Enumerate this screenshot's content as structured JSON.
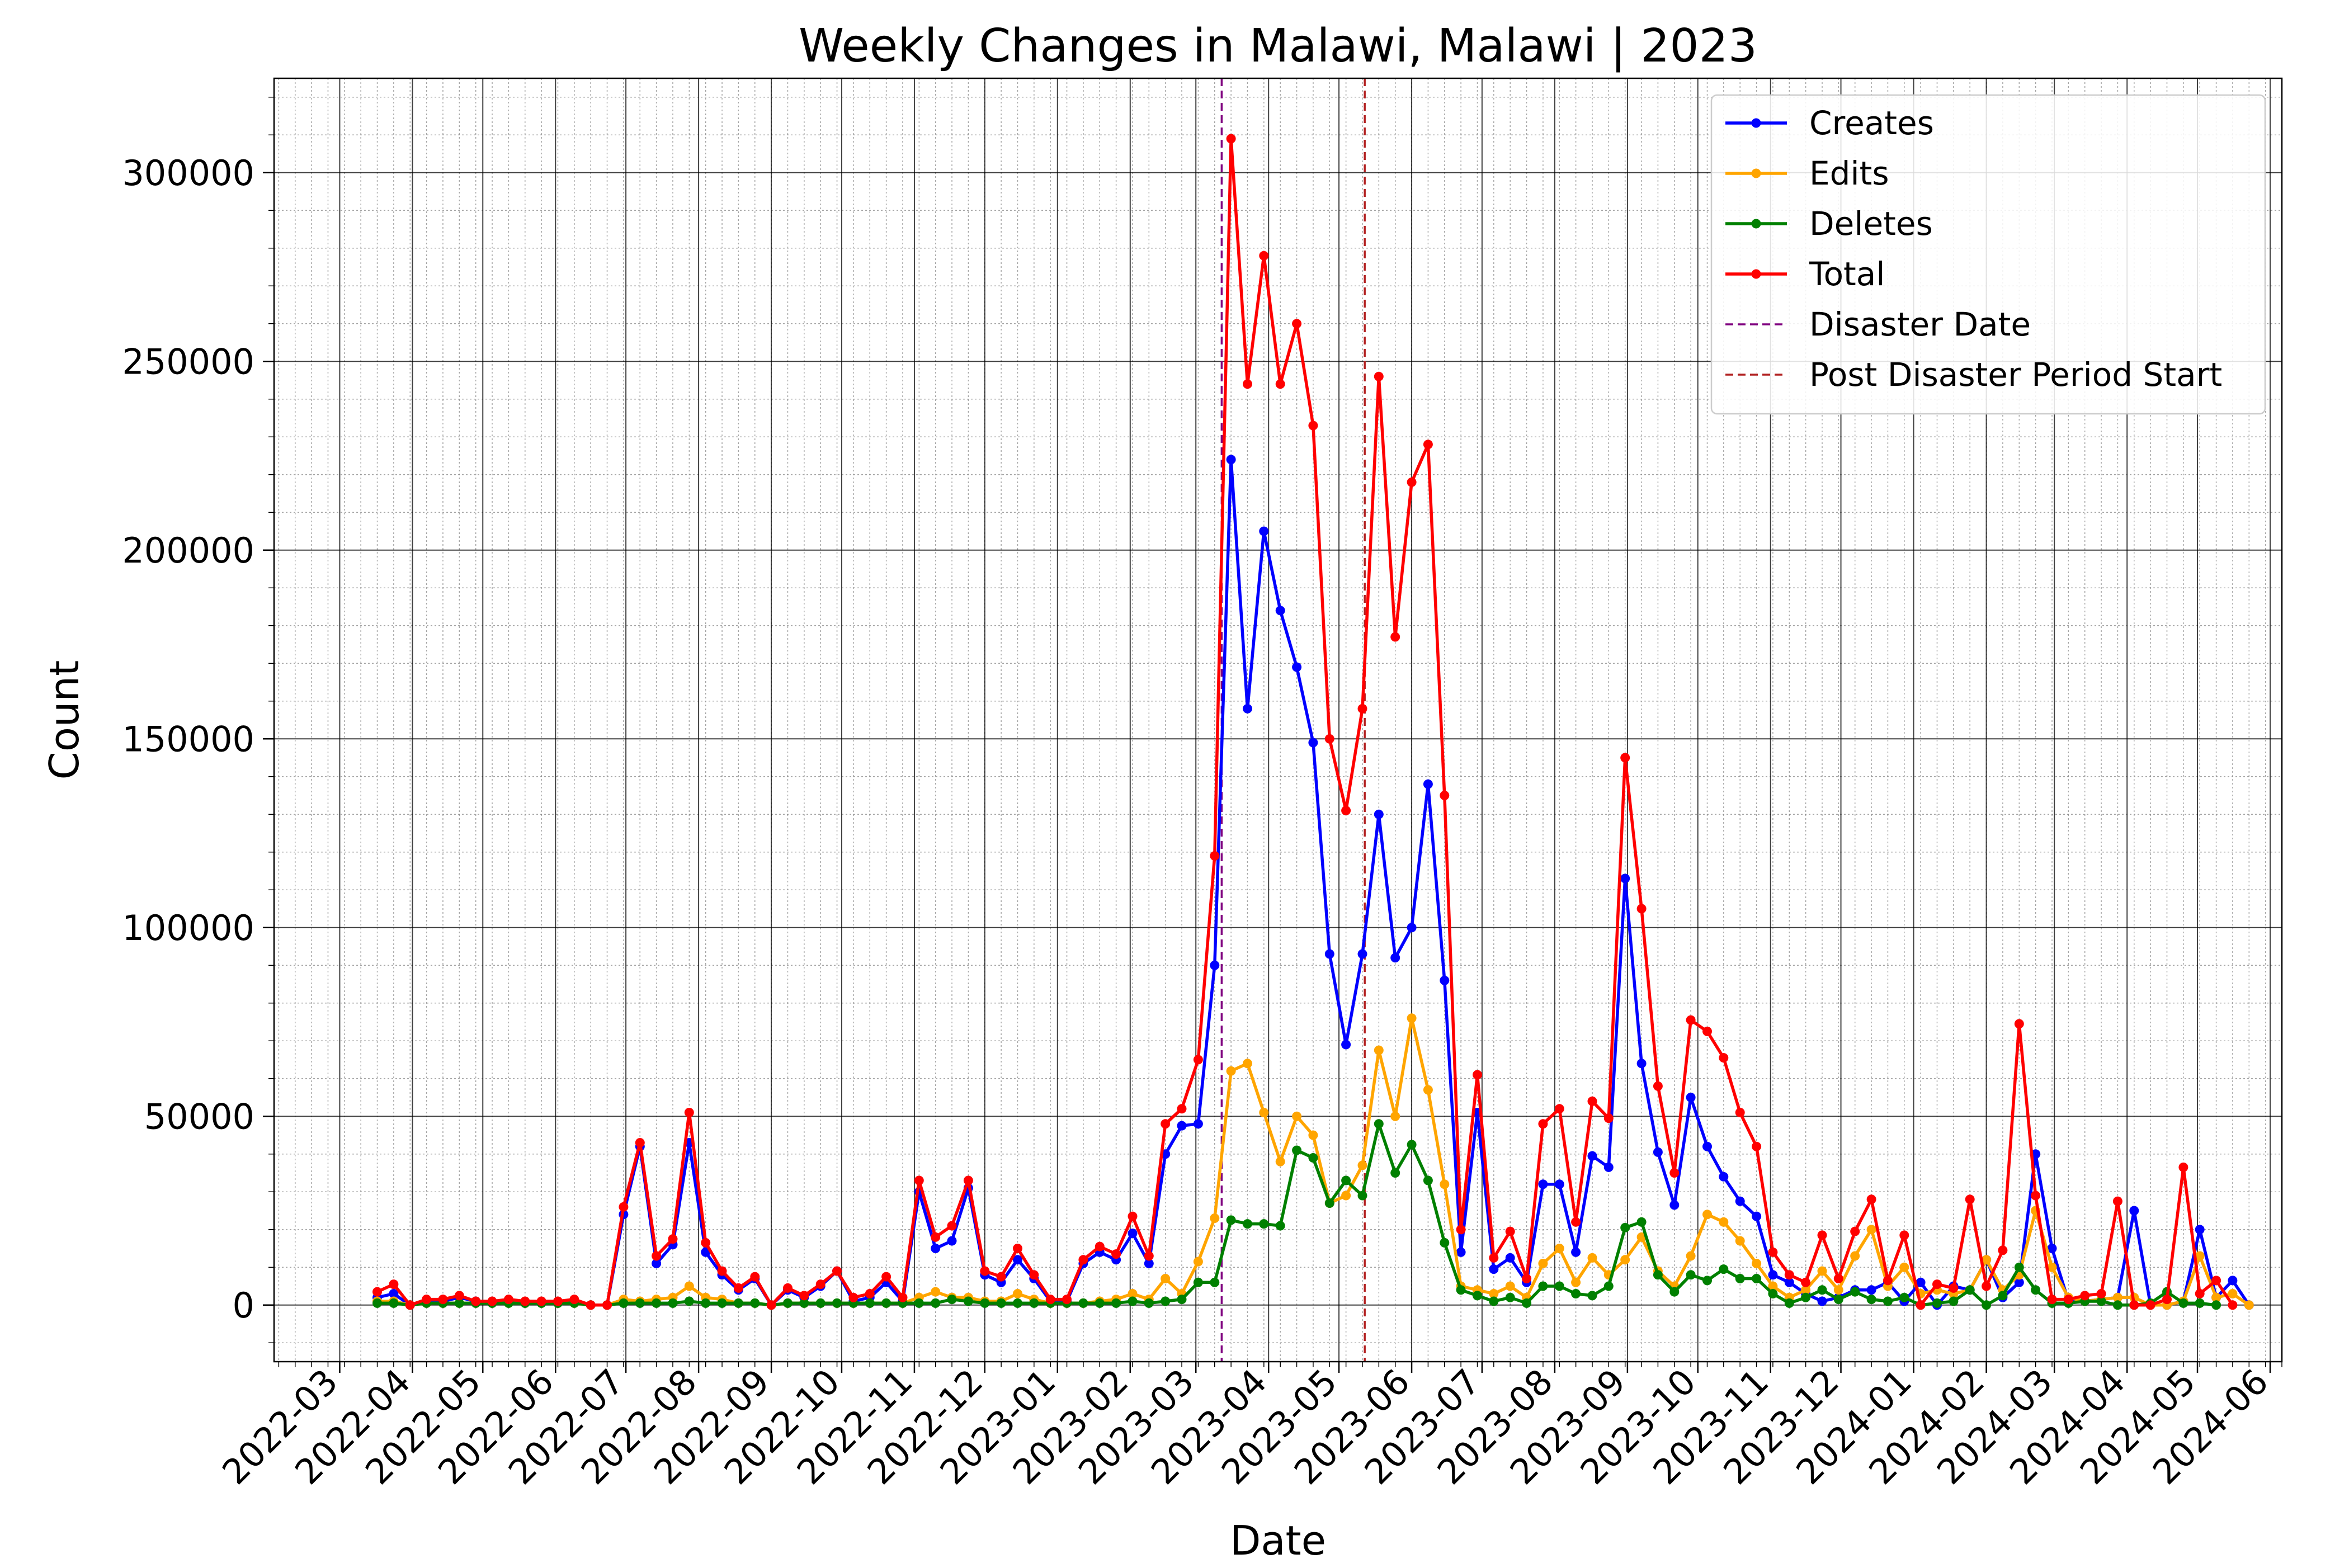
{
  "chart_data": {
    "type": "line",
    "title": "Weekly Changes in Malawi, Malawi | 2023",
    "xlabel": "Date",
    "ylabel": "Count",
    "xlim": [
      "2022-02-01",
      "2024-06-06"
    ],
    "ylim": [
      -15000,
      325000
    ],
    "x_tick_labels": [
      "2022-03",
      "2022-04",
      "2022-05",
      "2022-06",
      "2022-07",
      "2022-08",
      "2022-09",
      "2022-10",
      "2022-11",
      "2022-12",
      "2023-01",
      "2023-02",
      "2023-03",
      "2023-04",
      "2023-05",
      "2023-06",
      "2023-07",
      "2023-08",
      "2023-09",
      "2023-10",
      "2023-11",
      "2023-12",
      "2024-01",
      "2024-02",
      "2024-03",
      "2024-04",
      "2024-05",
      "2024-06"
    ],
    "y_ticks": [
      0,
      50000,
      100000,
      150000,
      200000,
      250000,
      300000
    ],
    "y_tick_labels": [
      "0",
      "50000",
      "100000",
      "150000",
      "200000",
      "250000",
      "300000"
    ],
    "grid": true,
    "legend": "top-right",
    "x_start": "2022-03-17",
    "x_step_days": 7,
    "series": [
      {
        "name": "Creates",
        "color": "#0000ff",
        "values": [
          2000,
          3000,
          0,
          1000,
          1000,
          2000,
          1000,
          500,
          1000,
          500,
          500,
          500,
          1000,
          0,
          0,
          24000,
          42000,
          11000,
          16000,
          43000,
          14000,
          8000,
          4000,
          7000,
          0,
          4000,
          2000,
          5000,
          9000,
          1000,
          2000,
          6000,
          1000,
          30000,
          15000,
          17000,
          31000,
          8000,
          6000,
          12000,
          7000,
          1000,
          1000,
          11000,
          14000,
          12000,
          19000,
          11000,
          40000,
          47500,
          48000,
          90000,
          224000,
          158000,
          205000,
          184000,
          169000,
          149000,
          93000,
          69000,
          93000,
          130000,
          92000,
          100000,
          138000,
          86000,
          14000,
          51000,
          9500,
          12500,
          6000,
          32000,
          32000,
          14000,
          39500,
          36500,
          113000,
          64000,
          40500,
          26500,
          55000,
          42000,
          34000,
          27500,
          23500,
          8000,
          6000,
          3000,
          1000,
          2000,
          4000,
          4000,
          6000,
          1000,
          6000,
          0,
          5000,
          4000,
          12000,
          2000,
          6000,
          40000,
          15000,
          1000,
          1000,
          1500,
          2000,
          25000,
          0,
          0,
          1000,
          20000,
          2000,
          6500,
          0
        ],
        "legend_marker": "line-dot"
      },
      {
        "name": "Edits",
        "color": "#ffa500",
        "values": [
          1000,
          1000,
          0,
          500,
          500,
          500,
          500,
          500,
          500,
          500,
          500,
          500,
          500,
          0,
          0,
          1500,
          1000,
          1500,
          2000,
          5000,
          2000,
          1500,
          500,
          500,
          0,
          500,
          500,
          500,
          500,
          500,
          500,
          500,
          500,
          2000,
          3500,
          2000,
          2000,
          1000,
          1000,
          3000,
          1500,
          500,
          500,
          500,
          1000,
          1500,
          3000,
          1500,
          7000,
          3000,
          11500,
          23000,
          62000,
          64000,
          51000,
          38000,
          50000,
          45000,
          27000,
          29000,
          37000,
          67500,
          50000,
          76000,
          57000,
          32000,
          5000,
          4000,
          3000,
          5000,
          2000,
          11000,
          15000,
          6000,
          12500,
          8000,
          12000,
          18000,
          9000,
          5000,
          13000,
          24000,
          22000,
          17000,
          11000,
          5000,
          2000,
          4000,
          9000,
          4000,
          13000,
          20000,
          5000,
          10000,
          3000,
          4000,
          3000,
          4000,
          12000,
          4000,
          8000,
          25000,
          10000,
          2000,
          1000,
          1500,
          2000,
          2000,
          0,
          0,
          1000,
          13000,
          2000,
          3000,
          0
        ],
        "legend_marker": "line-dot"
      },
      {
        "name": "Deletes",
        "color": "#008000",
        "values": [
          500,
          500,
          0,
          500,
          500,
          500,
          500,
          500,
          500,
          500,
          500,
          500,
          500,
          0,
          0,
          500,
          500,
          500,
          500,
          1000,
          500,
          500,
          500,
          500,
          0,
          500,
          500,
          500,
          500,
          500,
          500,
          500,
          500,
          500,
          500,
          1500,
          1000,
          500,
          500,
          500,
          500,
          500,
          500,
          500,
          500,
          500,
          1000,
          500,
          1000,
          1500,
          6000,
          6000,
          22500,
          21500,
          21500,
          21000,
          41000,
          39000,
          27000,
          33000,
          29000,
          48000,
          35000,
          42500,
          33000,
          16500,
          4000,
          2500,
          1000,
          2000,
          500,
          5000,
          5000,
          3000,
          2500,
          5000,
          20500,
          22000,
          8000,
          3500,
          8000,
          6500,
          9500,
          7000,
          7000,
          3000,
          500,
          2000,
          4000,
          1500,
          3500,
          1500,
          1000,
          2000,
          0,
          500,
          1000,
          4000,
          0,
          2500,
          10000,
          4000,
          500,
          500,
          1000,
          1000,
          0,
          0,
          500,
          3500,
          500,
          500,
          0
        ],
        "legend_marker": "line-dot"
      },
      {
        "name": "Total",
        "color": "#ff0000",
        "values": [
          3500,
          5500,
          0,
          1500,
          1500,
          2500,
          1000,
          1000,
          1500,
          1000,
          1000,
          1000,
          1500,
          0,
          0,
          26000,
          43000,
          13000,
          17500,
          51000,
          16500,
          9000,
          4500,
          7500,
          0,
          4500,
          2500,
          5500,
          9000,
          2000,
          3000,
          7500,
          2000,
          33000,
          18000,
          21000,
          33000,
          9000,
          7500,
          15000,
          8000,
          1500,
          1500,
          12000,
          15500,
          13500,
          23500,
          13000,
          48000,
          52000,
          65000,
          119000,
          309000,
          244000,
          278000,
          244000,
          260000,
          233000,
          150000,
          131000,
          158000,
          246000,
          177000,
          218000,
          228000,
          135000,
          20000,
          61000,
          12500,
          19500,
          7000,
          48000,
          52000,
          22000,
          54000,
          49500,
          145000,
          105000,
          58000,
          35000,
          75500,
          72500,
          65500,
          51000,
          42000,
          14000,
          8000,
          6000,
          18500,
          7000,
          19500,
          28000,
          6500,
          18500,
          0,
          5500,
          4500,
          28000,
          5000,
          14500,
          74500,
          29000,
          1500,
          1500,
          2500,
          3000,
          27500,
          0,
          0,
          1500,
          36500,
          3000,
          6500,
          0
        ],
        "legend_marker": "line-dot"
      }
    ],
    "vlines": [
      {
        "name": "Disaster Date",
        "date": "2023-03-12",
        "color": "#800080",
        "style": "dashed"
      },
      {
        "name": "Post Disaster Period Start",
        "date": "2023-05-12",
        "color": "#b22222",
        "style": "dashed"
      }
    ]
  }
}
